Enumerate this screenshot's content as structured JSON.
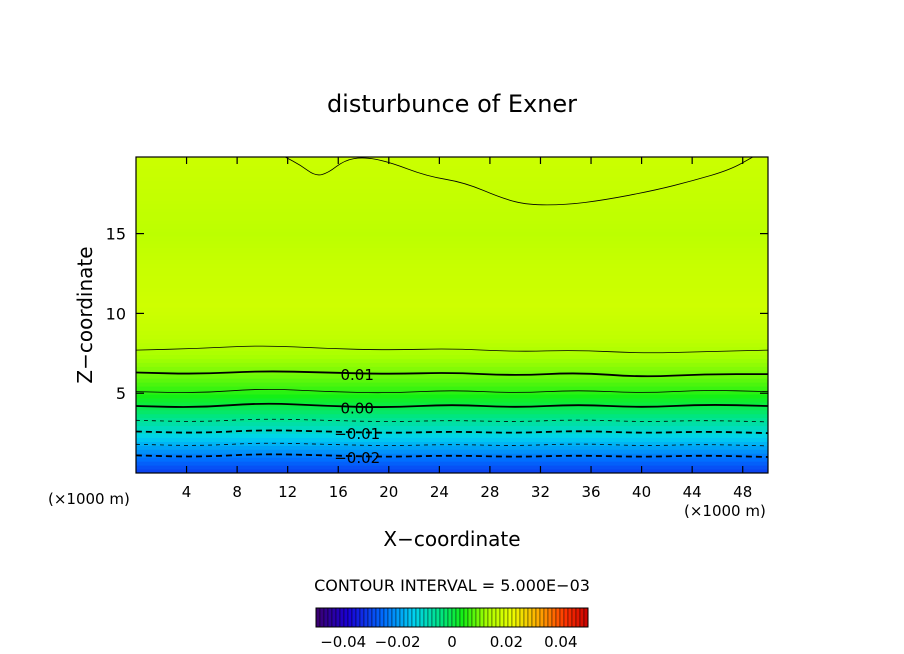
{
  "chart_data": {
    "type": "heatmap",
    "title": "disturbunce of Exner",
    "xlabel": "X−coordinate",
    "ylabel": "Z−coordinate",
    "x_unit": "(×1000 m)",
    "x_unit_right": "(×1000 m)",
    "xlim": [
      0,
      50
    ],
    "ylim": [
      0,
      19.8
    ],
    "x_ticks": [
      4,
      8,
      12,
      16,
      20,
      24,
      28,
      32,
      36,
      40,
      44,
      48
    ],
    "y_ticks": [
      5,
      10,
      15
    ],
    "contour_interval_text": "CONTOUR INTERVAL = 5.000E−03",
    "contour_labels": [
      {
        "text": "0.01",
        "x": 17.5,
        "z": 6.2
      },
      {
        "text": "0.00",
        "x": 17.5,
        "z": 4.1
      },
      {
        "text": "−0.01",
        "x": 17.5,
        "z": 2.5
      },
      {
        "text": "−0.02",
        "x": 17.5,
        "z": 1.0
      }
    ],
    "color_range": [
      -0.05,
      0.05
    ],
    "colorbar_ticks": [
      {
        "value": -0.04,
        "label": "−0.04"
      },
      {
        "value": -0.02,
        "label": "−0.02"
      },
      {
        "value": 0,
        "label": "0"
      },
      {
        "value": 0.02,
        "label": "0.02"
      },
      {
        "value": 0.04,
        "label": "0.04"
      }
    ],
    "vertical_profile": [
      {
        "z": 0.0,
        "value": -0.031
      },
      {
        "z": 1.0,
        "value": -0.024
      },
      {
        "z": 2.0,
        "value": -0.016
      },
      {
        "z": 3.0,
        "value": -0.008
      },
      {
        "z": 4.0,
        "value": -0.001
      },
      {
        "z": 5.0,
        "value": 0.005
      },
      {
        "z": 6.0,
        "value": 0.009
      },
      {
        "z": 7.0,
        "value": 0.012
      },
      {
        "z": 8.5,
        "value": 0.016
      },
      {
        "z": 10.5,
        "value": 0.018
      },
      {
        "z": 13.0,
        "value": 0.017
      },
      {
        "z": 15.0,
        "value": 0.0155
      },
      {
        "z": 17.0,
        "value": 0.0165
      },
      {
        "z": 19.8,
        "value": 0.0175
      }
    ],
    "contour_lines": [
      {
        "level": -0.02,
        "style": "dashed-bold",
        "points": [
          [
            0,
            1.1
          ],
          [
            5,
            1.0
          ],
          [
            10,
            1.2
          ],
          [
            15,
            1.1
          ],
          [
            20,
            1.0
          ],
          [
            25,
            1.1
          ],
          [
            30,
            1.0
          ],
          [
            35,
            1.1
          ],
          [
            40,
            1.0
          ],
          [
            45,
            1.1
          ],
          [
            50,
            1.0
          ]
        ]
      },
      {
        "level": -0.015,
        "style": "dashed",
        "points": [
          [
            0,
            1.8
          ],
          [
            5,
            1.7
          ],
          [
            10,
            1.9
          ],
          [
            15,
            1.8
          ],
          [
            20,
            1.7
          ],
          [
            25,
            1.8
          ],
          [
            30,
            1.7
          ],
          [
            35,
            1.85
          ],
          [
            40,
            1.7
          ],
          [
            45,
            1.8
          ],
          [
            50,
            1.7
          ]
        ]
      },
      {
        "level": -0.01,
        "style": "dashed-bold",
        "points": [
          [
            0,
            2.6
          ],
          [
            5,
            2.5
          ],
          [
            10,
            2.7
          ],
          [
            15,
            2.6
          ],
          [
            20,
            2.5
          ],
          [
            25,
            2.6
          ],
          [
            30,
            2.5
          ],
          [
            35,
            2.65
          ],
          [
            40,
            2.5
          ],
          [
            45,
            2.6
          ],
          [
            50,
            2.5
          ]
        ]
      },
      {
        "level": -0.005,
        "style": "dashed",
        "points": [
          [
            0,
            3.3
          ],
          [
            5,
            3.2
          ],
          [
            10,
            3.4
          ],
          [
            15,
            3.3
          ],
          [
            20,
            3.2
          ],
          [
            25,
            3.3
          ],
          [
            30,
            3.2
          ],
          [
            35,
            3.35
          ],
          [
            40,
            3.2
          ],
          [
            45,
            3.3
          ],
          [
            50,
            3.2
          ]
        ]
      },
      {
        "level": 0.0,
        "style": "solid-bold",
        "points": [
          [
            0,
            4.2
          ],
          [
            5,
            4.1
          ],
          [
            10,
            4.4
          ],
          [
            15,
            4.2
          ],
          [
            20,
            4.1
          ],
          [
            25,
            4.3
          ],
          [
            30,
            4.1
          ],
          [
            35,
            4.3
          ],
          [
            40,
            4.1
          ],
          [
            45,
            4.3
          ],
          [
            50,
            4.2
          ]
        ]
      },
      {
        "level": 0.005,
        "style": "solid",
        "points": [
          [
            0,
            5.1
          ],
          [
            5,
            5.0
          ],
          [
            10,
            5.3
          ],
          [
            15,
            5.1
          ],
          [
            20,
            5.0
          ],
          [
            25,
            5.2
          ],
          [
            30,
            5.0
          ],
          [
            35,
            5.2
          ],
          [
            40,
            5.0
          ],
          [
            45,
            5.2
          ],
          [
            50,
            5.1
          ]
        ]
      },
      {
        "level": 0.01,
        "style": "solid-bold",
        "points": [
          [
            0,
            6.3
          ],
          [
            5,
            6.2
          ],
          [
            10,
            6.4
          ],
          [
            15,
            6.3
          ],
          [
            20,
            6.2
          ],
          [
            25,
            6.3
          ],
          [
            30,
            6.1
          ],
          [
            35,
            6.3
          ],
          [
            40,
            6.0
          ],
          [
            45,
            6.2
          ],
          [
            50,
            6.2
          ]
        ]
      },
      {
        "level": 0.015,
        "style": "solid",
        "points": [
          [
            0,
            7.7
          ],
          [
            5,
            7.8
          ],
          [
            10,
            8.0
          ],
          [
            15,
            7.8
          ],
          [
            20,
            7.7
          ],
          [
            25,
            7.8
          ],
          [
            30,
            7.6
          ],
          [
            35,
            7.7
          ],
          [
            40,
            7.5
          ],
          [
            45,
            7.6
          ],
          [
            50,
            7.7
          ]
        ]
      },
      {
        "level": 0.0175,
        "style": "solid",
        "points": [
          [
            11.8,
            19.8
          ],
          [
            13,
            19.3
          ],
          [
            14.2,
            18.6
          ],
          [
            15.2,
            18.8
          ],
          [
            16.5,
            19.6
          ],
          [
            18,
            19.8
          ],
          [
            20,
            19.5
          ],
          [
            23,
            18.6
          ],
          [
            26,
            18.2
          ],
          [
            29,
            17.2
          ],
          [
            31,
            16.8
          ],
          [
            34,
            16.8
          ],
          [
            37,
            17.1
          ],
          [
            41,
            17.7
          ],
          [
            44,
            18.3
          ],
          [
            47,
            19.0
          ],
          [
            48.8,
            19.8
          ]
        ]
      }
    ]
  }
}
